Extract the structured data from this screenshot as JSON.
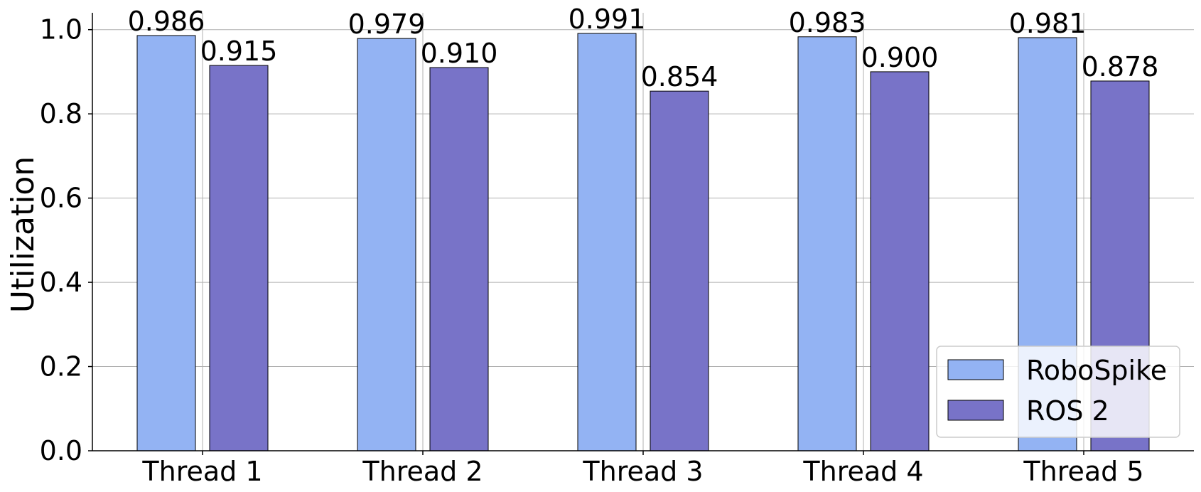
{
  "chart_data": {
    "type": "bar",
    "title": "",
    "xlabel": "",
    "ylabel": "Utilization",
    "categories": [
      "Thread 1",
      "Thread 2",
      "Thread 3",
      "Thread 4",
      "Thread 5"
    ],
    "series": [
      {
        "name": "RoboSpike",
        "color": "#93b3f3",
        "values": [
          0.986,
          0.979,
          0.991,
          0.983,
          0.981
        ],
        "labels": [
          "0.986",
          "0.979",
          "0.991",
          "0.983",
          "0.981"
        ]
      },
      {
        "name": "ROS 2",
        "color": "#7873c8",
        "values": [
          0.915,
          0.91,
          0.854,
          0.9,
          0.878
        ],
        "labels": [
          "0.915",
          "0.910",
          "0.854",
          "0.900",
          "0.878"
        ]
      }
    ],
    "ylim": [
      0,
      1.04
    ],
    "yticks": [
      0.0,
      0.2,
      0.4,
      0.6,
      0.8,
      1.0
    ],
    "ytick_labels": [
      "0.0",
      "0.2",
      "0.4",
      "0.6",
      "0.8",
      "1.0"
    ],
    "grid": true,
    "legend_position": "bottom-right"
  }
}
